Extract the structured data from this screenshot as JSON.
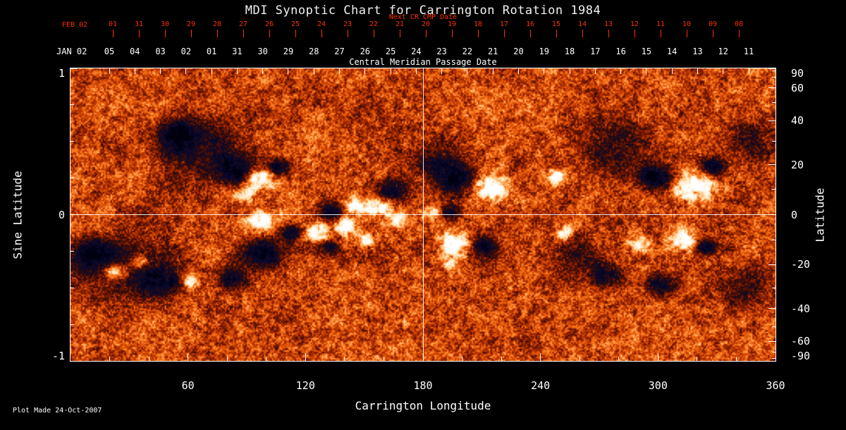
{
  "title": "MDI Synoptic Chart for Carrington Rotation 1984",
  "annotations": {
    "plot_made": "Plot Made 24-Oct-2007"
  },
  "colors": {
    "background": "#000000",
    "axis_text": "#ffffff",
    "next_cr_axis": "#ff3000",
    "quiet_sun": "#d84800",
    "negative_field": "#05052c",
    "positive_field": "#ffffff"
  },
  "axes": {
    "top_red": {
      "label": "Next CR CMP Date",
      "first_label": "FEB 02"
    },
    "top_white": {
      "label": "Central Meridian Passage Date",
      "first_label": "JAN 02"
    },
    "bottom": {
      "label": "Carrington Longitude"
    },
    "left": {
      "label": "Sine Latitude"
    },
    "right": {
      "label": "Latitude"
    }
  },
  "chart_data": {
    "type": "heatmap",
    "title": "MDI Synoptic Chart for Carrington Rotation 1984",
    "xlabel": "Carrington Longitude",
    "ylabel_left": "Sine Latitude",
    "ylabel_right": "Latitude",
    "xlim": [
      0,
      360
    ],
    "ylim_sine_latitude": [
      -1,
      1
    ],
    "x_ticks_major": [
      60,
      120,
      180,
      240,
      300,
      360
    ],
    "x_tick_minor_step_deg": 20,
    "left_ticks_sine_latitude": [
      1,
      0,
      -1
    ],
    "left_ticks_minor": [
      -0.75,
      -0.5,
      -0.25,
      0.25,
      0.5,
      0.75
    ],
    "right_tick_latitudes": [
      90,
      60,
      40,
      20,
      0,
      -20,
      -40,
      -60,
      -90
    ],
    "right_tick_latitudes_minor": [
      80,
      70,
      50,
      30,
      10,
      -10,
      -30,
      -50,
      -70,
      -80
    ],
    "next_cr_cmp_dates": [
      "01",
      "31",
      "30",
      "29",
      "28",
      "27",
      "26",
      "25",
      "24",
      "23",
      "22",
      "21",
      "20",
      "19",
      "18",
      "17",
      "16",
      "15",
      "14",
      "13",
      "12",
      "11",
      "10",
      "09",
      "08"
    ],
    "cmp_dates": [
      "05",
      "04",
      "03",
      "02",
      "01",
      "31",
      "30",
      "29",
      "28",
      "27",
      "26",
      "25",
      "24",
      "23",
      "22",
      "21",
      "20",
      "19",
      "18",
      "17",
      "16",
      "15",
      "14",
      "13",
      "12",
      "11"
    ],
    "gridlines": {
      "vertical_at_longitude": 180,
      "horizontal_at_sine_latitude": 0
    },
    "legend": "none",
    "description": "Solar photospheric magnetogram synoptic map for Carrington rotation 1984: mottled orange quiet Sun with dark (negative polarity) and white (positive polarity) magnetic active regions concentrated in two activity belts near +/-20 degrees latitude.",
    "active_regions_lon_sinlat_radius_amp": [
      [
        68,
        0.45,
        26,
        -0.55
      ],
      [
        277,
        0.45,
        22,
        -0.5
      ],
      [
        346,
        0.5,
        16,
        -0.45
      ],
      [
        27,
        -0.36,
        24,
        -0.6
      ],
      [
        259,
        -0.3,
        16,
        -0.5
      ],
      [
        346,
        -0.5,
        17,
        -0.5
      ],
      [
        187,
        0.36,
        14,
        -0.55
      ],
      [
        54,
        0.55,
        10,
        -1.0
      ],
      [
        83,
        0.31,
        9,
        -1.1
      ],
      [
        106,
        0.33,
        6,
        -1.0
      ],
      [
        133,
        0.02,
        7,
        -0.95
      ],
      [
        164,
        0.17,
        8,
        -0.9
      ],
      [
        198,
        0.24,
        11,
        -1.15
      ],
      [
        194,
        0.02,
        5,
        -0.85
      ],
      [
        299,
        0.26,
        9,
        -1.1
      ],
      [
        328,
        0.33,
        7,
        -0.95
      ],
      [
        11,
        -0.27,
        11,
        -1.0
      ],
      [
        47,
        -0.46,
        11,
        -0.9
      ],
      [
        97,
        -0.27,
        11,
        -1.0
      ],
      [
        83,
        -0.44,
        8,
        -0.85
      ],
      [
        113,
        -0.12,
        6,
        -0.9
      ],
      [
        131,
        -0.22,
        5,
        -0.8
      ],
      [
        211,
        -0.22,
        7,
        -1.0
      ],
      [
        274,
        -0.41,
        9,
        -0.85
      ],
      [
        302,
        -0.48,
        8,
        -0.9
      ],
      [
        324,
        -0.22,
        6,
        -0.95
      ],
      [
        97,
        0.24,
        7,
        1.25
      ],
      [
        88,
        0.14,
        5,
        1.0
      ],
      [
        146,
        0.07,
        6,
        1.15
      ],
      [
        158,
        0.05,
        6,
        1.2
      ],
      [
        214,
        0.19,
        9,
        1.35
      ],
      [
        247,
        0.26,
        5,
        0.95
      ],
      [
        319,
        0.19,
        10,
        1.4
      ],
      [
        23,
        -0.39,
        6,
        1.2
      ],
      [
        36,
        -0.32,
        5,
        0.9
      ],
      [
        61,
        -0.46,
        5,
        0.95
      ],
      [
        97,
        -0.05,
        7,
        1.2
      ],
      [
        126,
        -0.12,
        6,
        1.1
      ],
      [
        140,
        -0.07,
        6,
        1.05
      ],
      [
        151,
        -0.17,
        5,
        0.95
      ],
      [
        166,
        -0.03,
        5,
        0.95
      ],
      [
        196,
        -0.2,
        8,
        1.25
      ],
      [
        194,
        -0.34,
        4,
        0.85
      ],
      [
        252,
        -0.12,
        5,
        0.9
      ],
      [
        290,
        -0.2,
        5,
        0.95
      ],
      [
        313,
        -0.17,
        7,
        1.25
      ],
      [
        184,
        0.02,
        4,
        0.85
      ]
    ]
  }
}
